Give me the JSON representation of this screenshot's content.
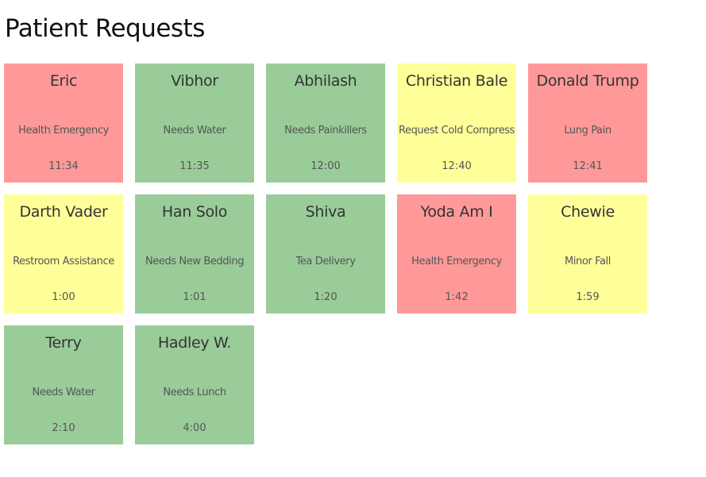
{
  "page_title": "Patient Requests",
  "colors": {
    "urgent": "#ff9999",
    "normal": "#99cc99",
    "moderate": "#ffff99"
  },
  "requests": [
    {
      "name": "Eric",
      "request": "Health Emergency",
      "time": "11:34",
      "priority": "urgent"
    },
    {
      "name": "Vibhor",
      "request": "Needs Water",
      "time": "11:35",
      "priority": "normal"
    },
    {
      "name": "Abhilash",
      "request": "Needs Painkillers",
      "time": "12:00",
      "priority": "normal"
    },
    {
      "name": "Christian Bale",
      "request": "Request Cold Compress",
      "time": "12:40",
      "priority": "moderate"
    },
    {
      "name": "Donald Trump",
      "request": "Lung Pain",
      "time": "12:41",
      "priority": "urgent"
    },
    {
      "name": "Darth Vader",
      "request": "Restroom Assistance",
      "time": "1:00",
      "priority": "moderate"
    },
    {
      "name": "Han Solo",
      "request": "Needs New Bedding",
      "time": "1:01",
      "priority": "normal"
    },
    {
      "name": "Shiva",
      "request": "Tea Delivery",
      "time": "1:20",
      "priority": "normal"
    },
    {
      "name": "Yoda Am I",
      "request": "Health Emergency",
      "time": "1:42",
      "priority": "urgent"
    },
    {
      "name": "Chewie",
      "request": "Minor Fall",
      "time": "1:59",
      "priority": "moderate"
    },
    {
      "name": "Terry",
      "request": "Needs Water",
      "time": "2:10",
      "priority": "normal"
    },
    {
      "name": "Hadley W.",
      "request": "Needs Lunch",
      "time": "4:00",
      "priority": "normal"
    }
  ]
}
